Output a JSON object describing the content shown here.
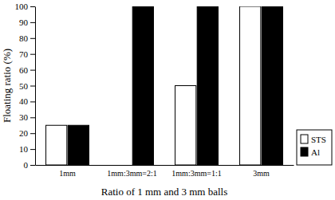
{
  "chart_data": {
    "type": "bar",
    "x_label": "Ratio of 1 mm and 3 mm balls",
    "y_label": "Floating ratio (%)",
    "categories": [
      "1mm",
      "1mm:3mm=2:1",
      "1mm:3mm=1:1",
      "3mm"
    ],
    "series": [
      {
        "name": "STS",
        "color": "#ffffff",
        "values": [
          25,
          0,
          50,
          100
        ]
      },
      {
        "name": "Al",
        "color": "#000000",
        "values": [
          25,
          100,
          100,
          100
        ]
      }
    ],
    "ylim": [
      0,
      100
    ],
    "yticks": [
      0,
      10,
      20,
      30,
      40,
      50,
      60,
      70,
      80,
      90,
      100
    ],
    "grid": false,
    "legend": "lower right"
  }
}
